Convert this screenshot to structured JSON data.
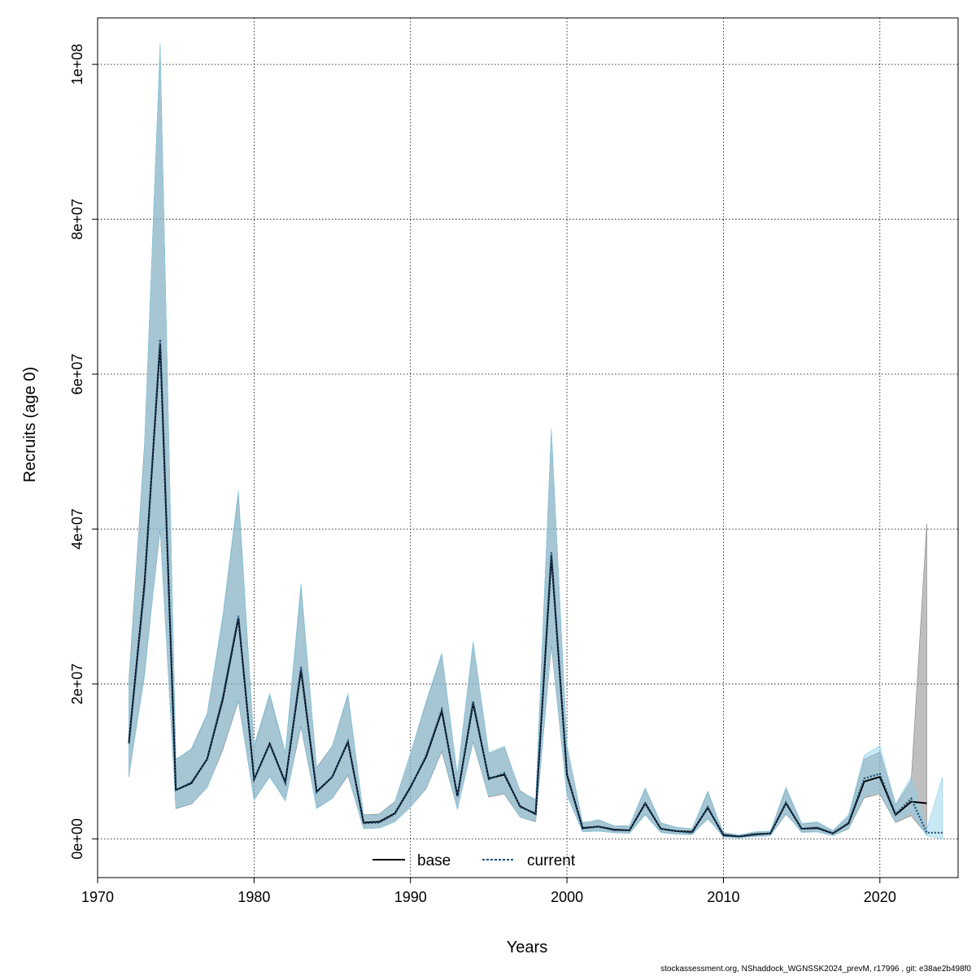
{
  "chart_data": {
    "type": "line",
    "xlabel": "Years",
    "ylabel": "Recruits (age 0)",
    "xlim": [
      1970,
      2025
    ],
    "ylim": [
      -5000000,
      106000000
    ],
    "x_ticks": [
      1970,
      1980,
      1990,
      2000,
      2010,
      2020
    ],
    "x_tick_labels": [
      "1970",
      "1980",
      "1990",
      "2000",
      "2010",
      "2020"
    ],
    "y_ticks": [
      0,
      20000000,
      40000000,
      60000000,
      80000000,
      100000000
    ],
    "y_tick_labels": [
      "0e+00",
      "2e+07",
      "4e+07",
      "6e+07",
      "8e+07",
      "1e+08"
    ],
    "grid": true,
    "legend_position": "bottom-center",
    "series": [
      {
        "name": "base",
        "color": "#000000",
        "line_style": "solid",
        "band_color": "#808080",
        "x": [
          1972,
          1973,
          1974,
          1975,
          1976,
          1977,
          1978,
          1979,
          1980,
          1981,
          1982,
          1983,
          1984,
          1985,
          1986,
          1987,
          1988,
          1989,
          1990,
          1991,
          1992,
          1993,
          1994,
          1995,
          1996,
          1997,
          1998,
          1999,
          2000,
          2001,
          2002,
          2003,
          2004,
          2005,
          2006,
          2007,
          2008,
          2009,
          2010,
          2011,
          2012,
          2013,
          2014,
          2015,
          2016,
          2017,
          2018,
          2019,
          2020,
          2021,
          2022,
          2023
        ],
        "values": [
          12500000,
          33000000,
          64000000,
          6300000,
          7200000,
          10300000,
          18000000,
          28500000,
          7700000,
          12300000,
          7300000,
          21800000,
          6100000,
          8000000,
          12500000,
          2100000,
          2200000,
          3300000,
          6700000,
          10600000,
          16500000,
          5500000,
          17500000,
          7800000,
          8300000,
          4200000,
          3200000,
          36500000,
          8300000,
          1400000,
          1600000,
          1200000,
          1100000,
          4600000,
          1300000,
          1000000,
          900000,
          4000000,
          500000,
          300000,
          600000,
          700000,
          4600000,
          1300000,
          1400000,
          700000,
          2000000,
          7400000,
          8000000,
          3100000,
          4800000,
          4600000
        ],
        "upper": [
          20500000,
          51000000,
          102500000,
          10300000,
          11500000,
          16000000,
          28500000,
          44500000,
          11800000,
          18500000,
          11000000,
          32500000,
          9200000,
          12000000,
          18500000,
          3100000,
          3200000,
          4800000,
          11000000,
          17500000,
          23800000,
          8200000,
          25300000,
          11000000,
          11800000,
          6200000,
          5000000,
          52800000,
          12000000,
          2100000,
          2400000,
          1700000,
          1600000,
          6500000,
          2000000,
          1500000,
          1300000,
          6000000,
          800000,
          500000,
          900000,
          1000000,
          6400000,
          1900000,
          2100000,
          1000000,
          2900000,
          10300000,
          11200000,
          4300000,
          7500000,
          40700000
        ],
        "lower": [
          8000000,
          21500000,
          40000000,
          3900000,
          4500000,
          6600000,
          11500000,
          17800000,
          5000000,
          8100000,
          4900000,
          14500000,
          4000000,
          5200000,
          8200000,
          1300000,
          1400000,
          2200000,
          4100000,
          6500000,
          11300000,
          3800000,
          12500000,
          5400000,
          5800000,
          2800000,
          2200000,
          25000000,
          5600000,
          900000,
          1000000,
          800000,
          700000,
          3200000,
          900000,
          600000,
          600000,
          2600000,
          300000,
          200000,
          300000,
          400000,
          3200000,
          900000,
          900000,
          400000,
          1300000,
          5300000,
          5800000,
          2100000,
          3000000,
          500000
        ]
      },
      {
        "name": "current",
        "color": "#1f4e79",
        "line_style": "dotted",
        "band_color": "#87ceeb",
        "x": [
          1972,
          1973,
          1974,
          1975,
          1976,
          1977,
          1978,
          1979,
          1980,
          1981,
          1982,
          1983,
          1984,
          1985,
          1986,
          1987,
          1988,
          1989,
          1990,
          1991,
          1992,
          1993,
          1994,
          1995,
          1996,
          1997,
          1998,
          1999,
          2000,
          2001,
          2002,
          2003,
          2004,
          2005,
          2006,
          2007,
          2008,
          2009,
          2010,
          2011,
          2012,
          2013,
          2014,
          2015,
          2016,
          2017,
          2018,
          2019,
          2020,
          2021,
          2022,
          2023,
          2024
        ],
        "values": [
          12300000,
          32500000,
          64500000,
          6300000,
          7300000,
          10300000,
          18300000,
          28800000,
          7700000,
          12200000,
          7200000,
          22200000,
          6000000,
          8000000,
          12600000,
          2000000,
          2100000,
          3200000,
          6600000,
          10800000,
          16700000,
          5400000,
          17800000,
          7700000,
          8500000,
          4100000,
          3300000,
          37000000,
          8200000,
          1300000,
          1600000,
          1100000,
          1100000,
          4500000,
          1300000,
          1000000,
          800000,
          4100000,
          400000,
          300000,
          500000,
          700000,
          4700000,
          1300000,
          1500000,
          700000,
          2100000,
          7800000,
          8400000,
          3200000,
          5200000,
          800000,
          800000
        ],
        "upper": [
          20000000,
          50500000,
          102800000,
          10200000,
          11700000,
          16200000,
          28800000,
          45000000,
          12100000,
          18800000,
          11200000,
          33000000,
          9000000,
          12000000,
          18800000,
          3000000,
          3100000,
          4700000,
          11000000,
          17800000,
          24000000,
          8200000,
          25500000,
          11100000,
          12000000,
          6100000,
          5100000,
          53000000,
          12100000,
          2000000,
          2500000,
          1700000,
          1700000,
          6600000,
          2100000,
          1500000,
          1300000,
          6200000,
          700000,
          500000,
          900000,
          1000000,
          6700000,
          2000000,
          2200000,
          1100000,
          3100000,
          10800000,
          12000000,
          4500000,
          8000000,
          1200000,
          8000000
        ],
        "lower": [
          8200000,
          21000000,
          40500000,
          4000000,
          4600000,
          6600000,
          11800000,
          18000000,
          5000000,
          8000000,
          4900000,
          14800000,
          3900000,
          5200000,
          8400000,
          1300000,
          1400000,
          2200000,
          4100000,
          6600000,
          11600000,
          3800000,
          12700000,
          5500000,
          6000000,
          2800000,
          2300000,
          25500000,
          5600000,
          900000,
          1000000,
          800000,
          700000,
          3100000,
          800000,
          600000,
          500000,
          2700000,
          200000,
          100000,
          300000,
          400000,
          3300000,
          800000,
          900000,
          400000,
          1400000,
          5600000,
          6000000,
          2200000,
          3400000,
          400000,
          0
        ]
      }
    ]
  },
  "credit": "stockassessment.org, NShaddock_WGNSSK2024_prevM, r17996 , git: e38ae2b498f0"
}
